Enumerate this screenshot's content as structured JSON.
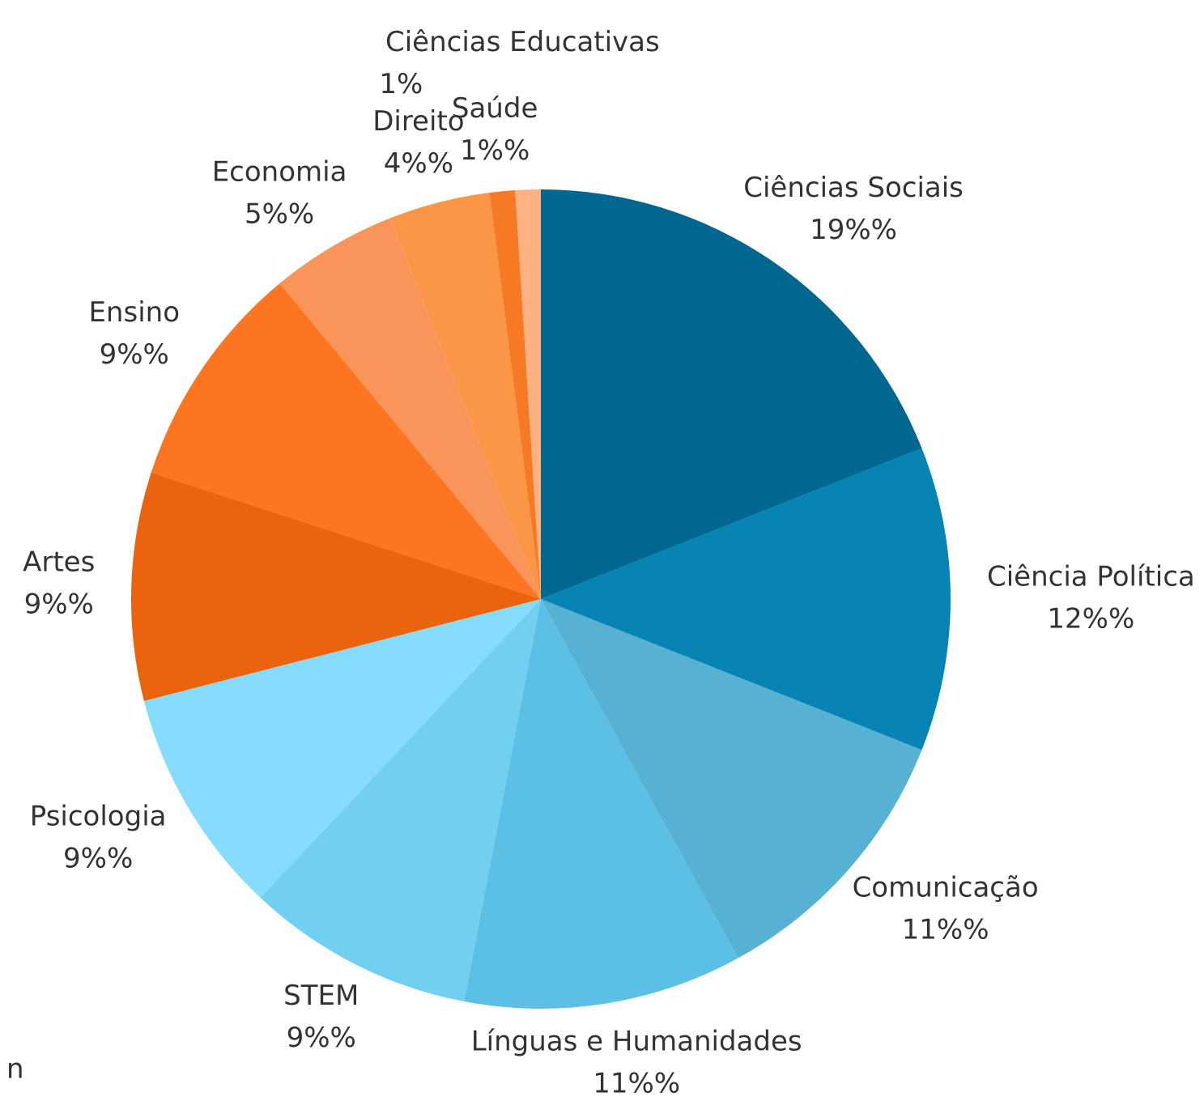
{
  "chart_data": {
    "type": "pie",
    "categories": [
      "Ciências Sociais",
      "Ciência Política",
      "Comunicação",
      "Línguas e Humanidades",
      "STEM",
      "Psicologia",
      "Artes",
      "Ensino",
      "Economia",
      "Direito",
      "Saúde",
      "Ciências Educativas"
    ],
    "values": [
      19,
      12,
      11,
      11,
      9,
      9,
      9,
      9,
      5,
      4,
      1,
      1
    ],
    "value_labels": [
      "19%%",
      "12%%",
      "11%%",
      "11%%",
      "9%%",
      "9%%",
      "9%%",
      "9%%",
      "5%%",
      "4%%",
      "1%%",
      "1%"
    ],
    "colors": [
      "#006790",
      "#0783b4",
      "#56b1d2",
      "#5cbfe4",
      "#71cff0",
      "#85dcfc",
      "#ec630e",
      "#fd7520",
      "#f9955a",
      "#fb9647",
      "#f57a23",
      "#feb182"
    ]
  },
  "stray_text": "n"
}
